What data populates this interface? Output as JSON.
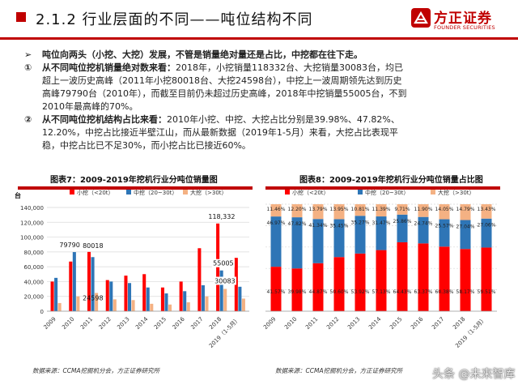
{
  "header": {
    "title": "2.1.2 行业层面的不同——吨位结构不同",
    "logo_cn": "方正证券",
    "logo_en": "FOUNDER SECURITIES"
  },
  "points": {
    "lead": {
      "bullet": "➢",
      "text": "吨位向两头（小挖、大挖）发展，不管是销量绝对量还是占比，中挖都在往下走。"
    },
    "p1": {
      "bullet": "①",
      "head": "从不同吨位挖机销量绝对数来看：",
      "line1": "2018年，小挖销量118332台、大挖销量30083台，均已",
      "line2": "超上一波历史高峰（2011年小挖80018台、大挖24598台），中挖上一波周期领先达到历史",
      "line3": "高峰79790台（2010年），而截至目前仍未超过历史高峰，2018年中挖销量55005台，不到",
      "line4": "2010年最高峰的70%。"
    },
    "p2": {
      "bullet": "②",
      "head": "从不同吨位挖机结构占比来看：",
      "line1": "2010年小挖、中挖、大挖占比分别是39.98%、47.82%、",
      "line2": "12.20%，中挖占比接近半壁江山，而从最新数据（2019年1-5月）来看，大挖占比表现平",
      "line3": "稳，中挖占比已不足30%，而小挖占比已接近60%。"
    }
  },
  "chart_data": [
    {
      "type": "bar",
      "title": "图表7：2009-2019年挖机行业分吨位销量图",
      "ylabel": "台",
      "ylim": [
        0,
        140000
      ],
      "yticks": [
        0,
        20000,
        40000,
        60000,
        80000,
        100000,
        120000,
        140000
      ],
      "categories": [
        "2009",
        "2010",
        "2011",
        "2012",
        "2013",
        "2014",
        "2015",
        "2016",
        "2017",
        "2018",
        "2019（1-5月）"
      ],
      "series": [
        {
          "name": "小挖（<20t）",
          "color": "#ff0000",
          "values": [
            40000,
            67000,
            80018,
            42000,
            48000,
            50000,
            32000,
            40000,
            85000,
            118332,
            72000
          ]
        },
        {
          "name": "中挖（20~30t）",
          "color": "#2e75b6",
          "values": [
            45000,
            79790,
            73000,
            40000,
            38000,
            32000,
            24000,
            27000,
            35000,
            55005,
            33000
          ]
        },
        {
          "name": "大挖（>30t）",
          "color": "#f4b183",
          "values": [
            11000,
            20000,
            24598,
            16000,
            15000,
            10000,
            9000,
            12000,
            20000,
            30083,
            17000
          ]
        }
      ],
      "annotations": [
        {
          "text": "118,332",
          "category": "2018",
          "value": 118332
        },
        {
          "text": "79790",
          "category": "2010",
          "value": 79790
        },
        {
          "text": "80018",
          "category": "2011",
          "value": 80018
        },
        {
          "text": "24598",
          "category": "2011",
          "value": 24598
        },
        {
          "text": "55005",
          "category": "2018",
          "value": 55005
        },
        {
          "text": "30083",
          "category": "2018",
          "value": 30083
        }
      ],
      "legend": "top",
      "grid": true,
      "source": "数据来源：CCMA挖掘机分会，方正证券研究所"
    },
    {
      "type": "bar",
      "stacked": true,
      "title": "图表8：2009-2019年挖机行业分吨位销量占比图",
      "ylim": [
        0,
        100
      ],
      "categories": [
        "2009",
        "2010",
        "2011",
        "2012",
        "2013",
        "2014",
        "2015",
        "2016",
        "2017",
        "2018",
        "2019（1-5月）"
      ],
      "series": [
        {
          "name": "小挖（<20t）",
          "color": "#ff0000",
          "values": [
            41.57,
            39.98,
            44.87,
            50.6,
            53.92,
            57.13,
            64.43,
            63.37,
            60.38,
            58.17,
            59.51
          ]
        },
        {
          "name": "中挖（20~30t）",
          "color": "#2e75b6",
          "values": [
            46.97,
            47.82,
            41.34,
            35.45,
            35.27,
            31.47,
            25.86,
            24.74,
            25.57,
            27.04,
            27.06
          ]
        },
        {
          "name": "大挖（>30t）",
          "color": "#f4b183",
          "values": [
            11.46,
            12.2,
            13.79,
            13.95,
            10.81,
            11.39,
            9.71,
            11.9,
            14.05,
            14.79,
            13.43
          ]
        }
      ],
      "labels": {
        "small": [
          "41.57%",
          "39.98%",
          "44.87%",
          "50.60%",
          "53.92%",
          "57.13%",
          "64.43%",
          "63.37%",
          "60.38%",
          "58.17%",
          "59.51%"
        ],
        "mid": [
          "46.97%",
          "47.82%",
          "41.34%",
          "35.45%",
          "35.27%",
          "31.47%",
          "25.86%",
          "24.74%",
          "25.57%",
          "27.04%",
          "27.06%"
        ],
        "large": [
          "11.46%",
          "12.20%",
          "13.79%",
          "13.95%",
          "10.81%",
          "11.39%",
          "9.71%",
          "11.90%",
          "14.05%",
          "14.79%",
          "13.43%"
        ]
      },
      "legend": "top",
      "source": "数据来源：CCMA挖掘机分会，方正证券研究所"
    }
  ],
  "watermark": "头条 @未来智库"
}
